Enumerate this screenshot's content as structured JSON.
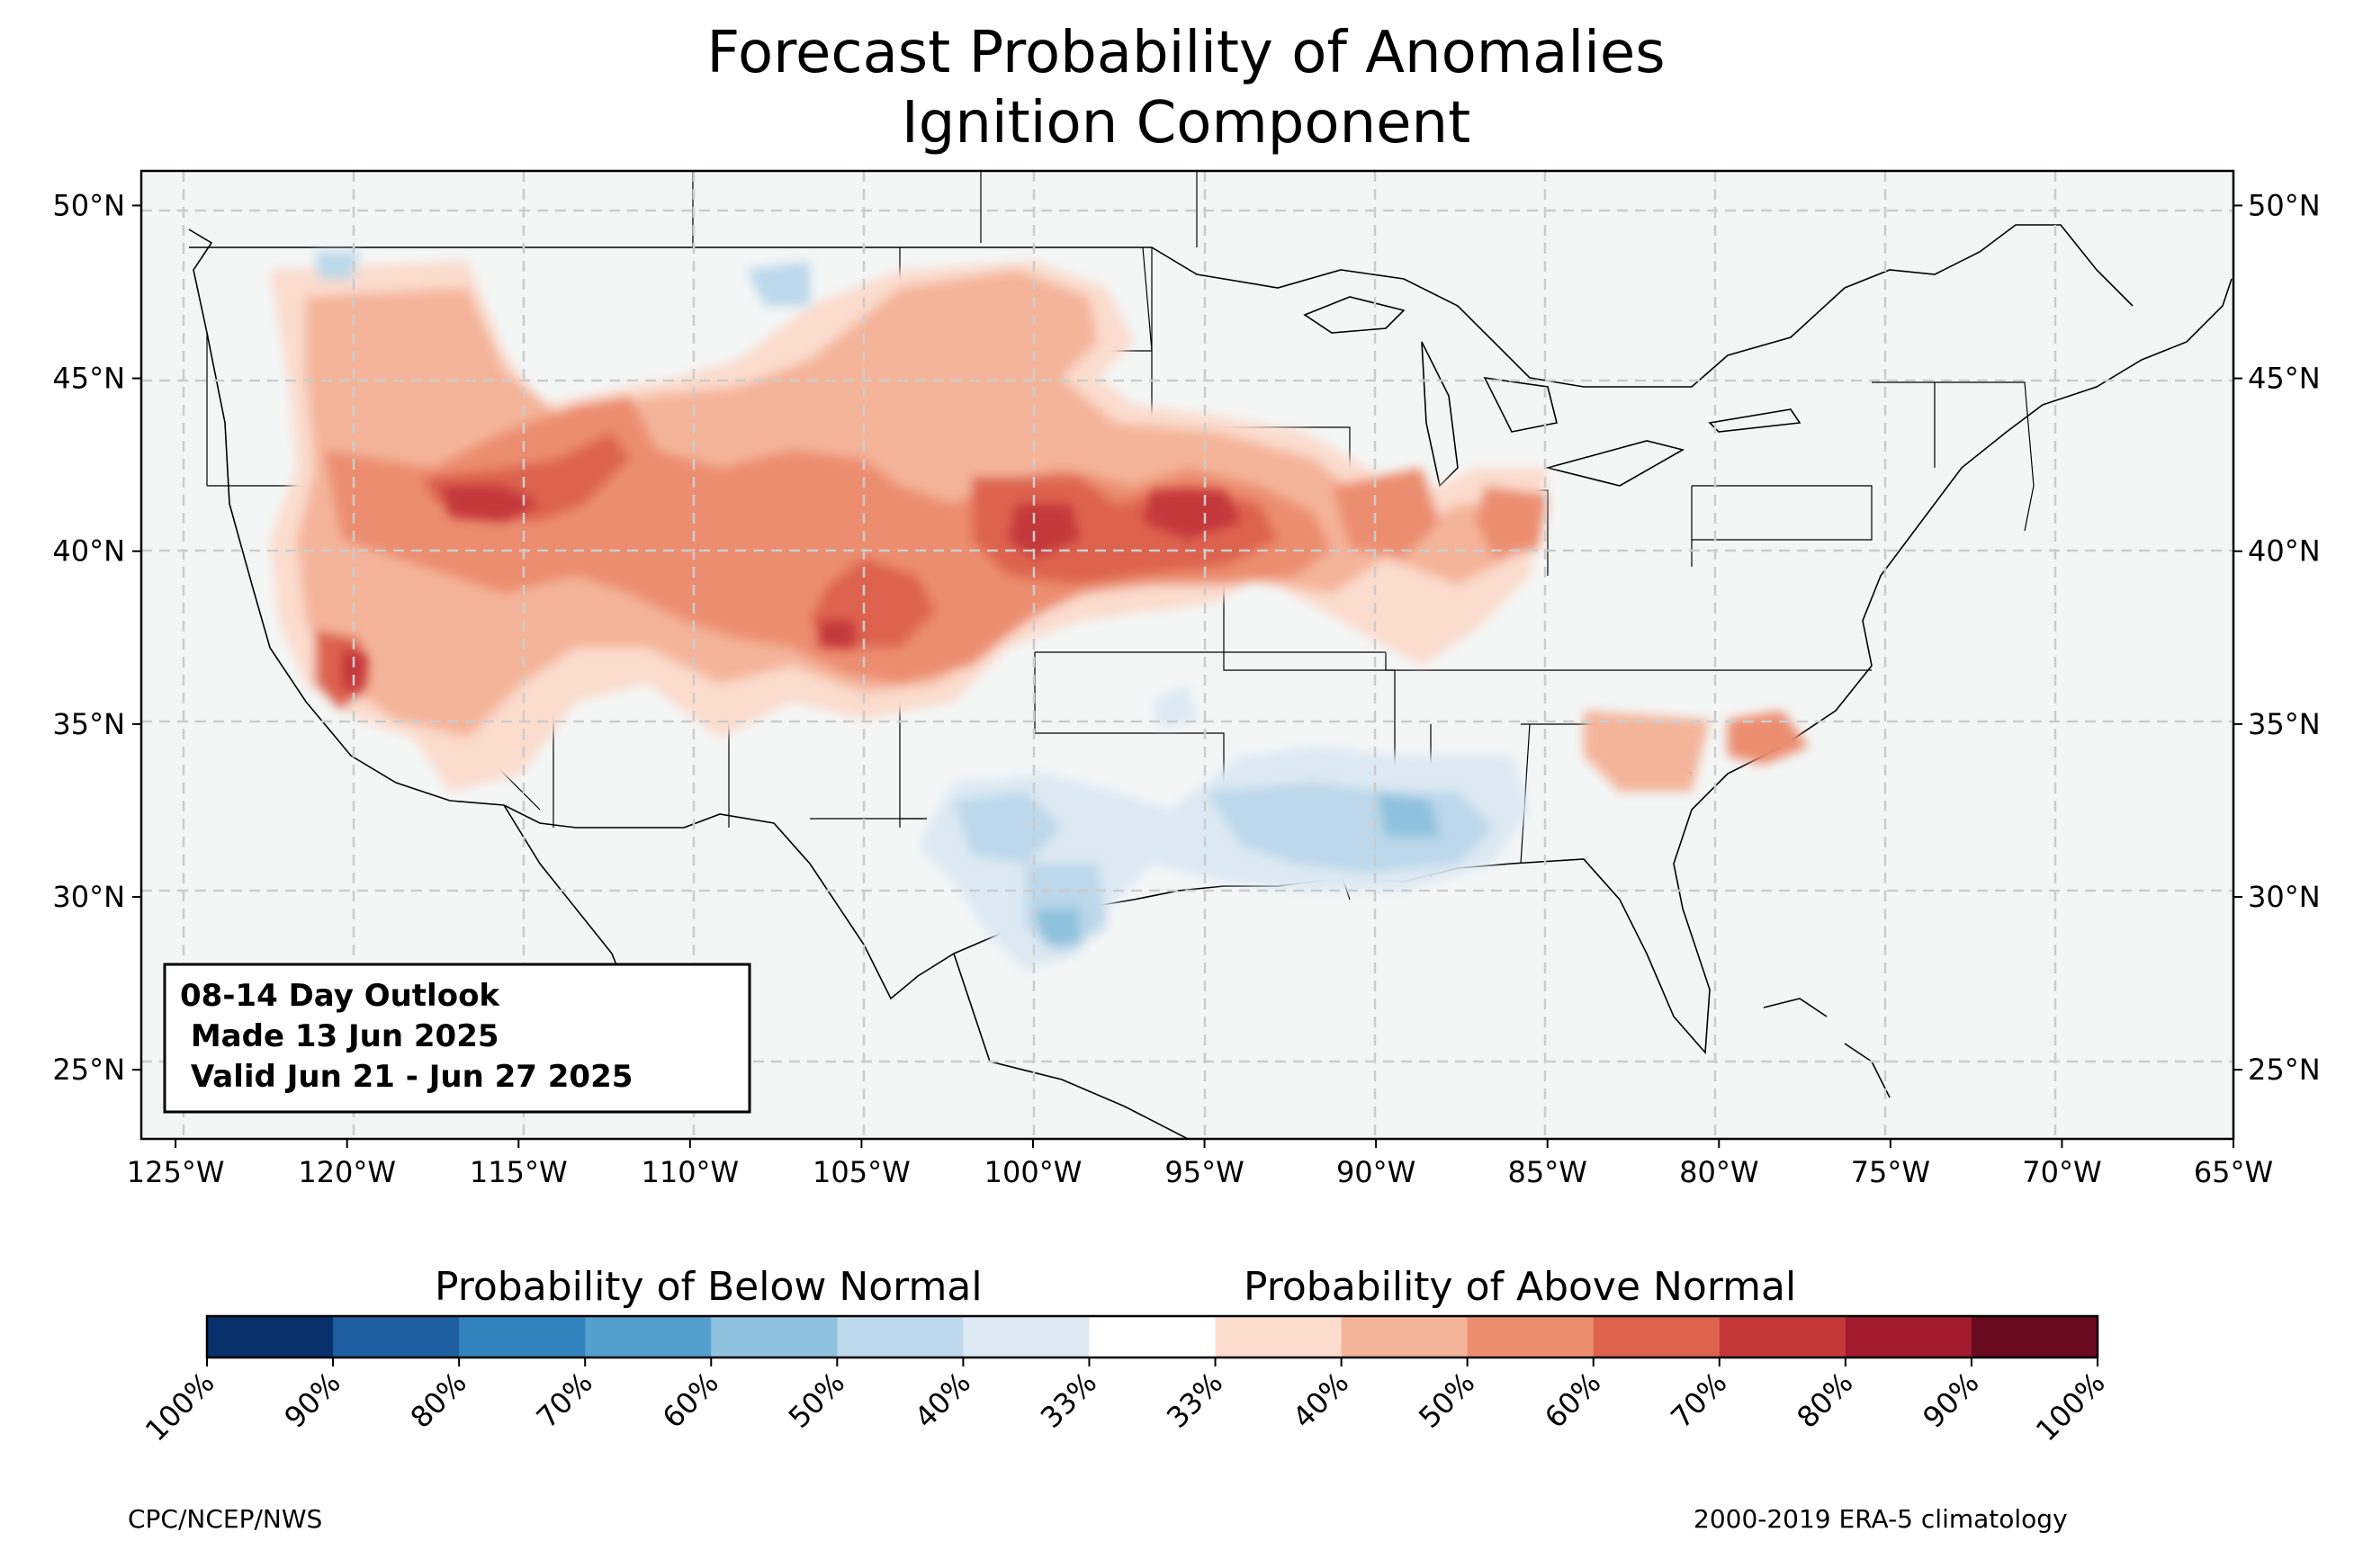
{
  "title": {
    "line1": "Forecast Probability of Anomalies",
    "line2": "Ignition Component"
  },
  "map": {
    "lon_range": [
      -126,
      -65
    ],
    "lat_range": [
      23,
      51
    ],
    "lon_ticks": [
      "125°W",
      "120°W",
      "115°W",
      "110°W",
      "105°W",
      "100°W",
      "95°W",
      "90°W",
      "85°W",
      "80°W",
      "75°W",
      "70°W",
      "65°W"
    ],
    "lat_ticks": [
      "25°N",
      "30°N",
      "35°N",
      "40°N",
      "45°N",
      "50°N"
    ],
    "gridlines": true,
    "background": "#f4f6f6"
  },
  "info_box": {
    "line1": "08-14 Day Outlook",
    "line2": " Made 13 Jun 2025",
    "line3": " Valid Jun 21 - Jun 27 2025"
  },
  "colorbar": {
    "below_label": "Probability of Below Normal",
    "above_label": "Probability of Above Normal",
    "tick_labels": [
      "100%",
      "90%",
      "80%",
      "70%",
      "60%",
      "50%",
      "40%",
      "33%",
      "33%",
      "40%",
      "50%",
      "60%",
      "70%",
      "80%",
      "90%",
      "100%"
    ],
    "colors": [
      "#08306b",
      "#1d5fa0",
      "#3282bd",
      "#559fcf",
      "#8ec1dd",
      "#bcd8ea",
      "#dde9f3",
      "#ffffff",
      "#fbdccd",
      "#f4b49a",
      "#ec8d6f",
      "#dd634f",
      "#c4383a",
      "#a21a2e",
      "#6a0a20"
    ]
  },
  "footer": {
    "left": "CPC/NCEP/NWS",
    "right": "2000-2019 ERA-5 climatology"
  }
}
